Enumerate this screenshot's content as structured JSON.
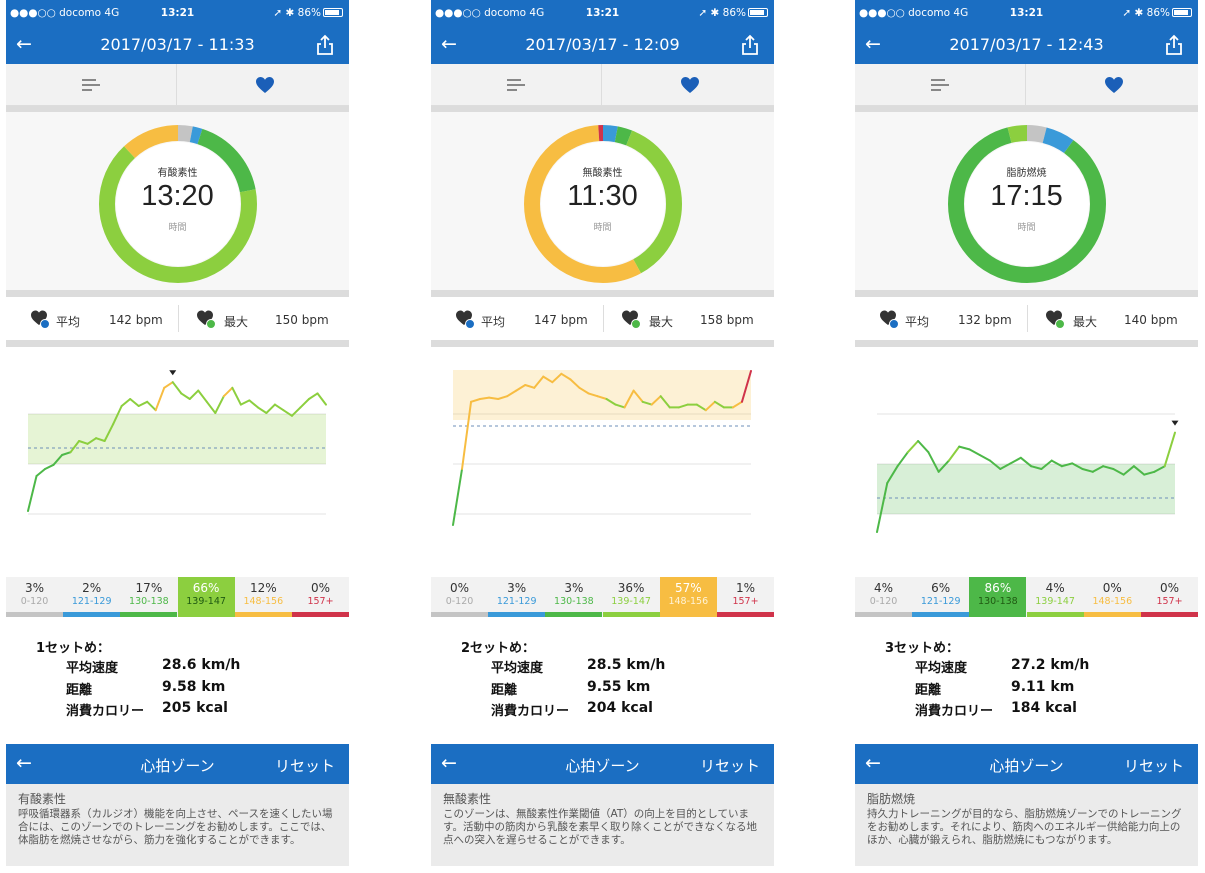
{
  "colors": {
    "brand_blue": "#1b6ec2",
    "zone_blue": "#3a9ad9",
    "zone_green": "#4db848",
    "zone_lightgreen": "#8ccf3f",
    "zone_yellow": "#f7bd42",
    "zone_red": "#d0334a",
    "zone_grey": "#c4c4c4"
  },
  "phones": [
    {
      "status": {
        "carrier": "●●●○○ docomo   4G",
        "time": "13:21",
        "battery": "86%"
      },
      "nav_title": "2017/03/17 - 11:33",
      "ring": {
        "label": "有酸素性",
        "time": "13:20",
        "sub": "時間"
      },
      "ring_segments": [
        {
          "zone": "grey",
          "percent": 3
        },
        {
          "zone": "blue",
          "percent": 2
        },
        {
          "zone": "green",
          "percent": 17
        },
        {
          "zone": "lightgreen",
          "percent": 66
        },
        {
          "zone": "yellow",
          "percent": 12
        },
        {
          "zone": "red",
          "percent": 0
        }
      ],
      "avg_label": "平均",
      "avg_value": "142 bpm",
      "max_label": "最大",
      "max_value": "150 bpm",
      "graph": {
        "band_zone": "lightgreen",
        "peak_marker_index": 17,
        "series": [
          30,
          55,
          60,
          63,
          70,
          72,
          80,
          78,
          82,
          80,
          92,
          105,
          110,
          105,
          108,
          102,
          118,
          122,
          114,
          110,
          116,
          108,
          100,
          112,
          118,
          106,
          109,
          104,
          100,
          106,
          102,
          98,
          104,
          110,
          114,
          106
        ]
      },
      "zones": [
        {
          "pct": "3%",
          "range": "0-120",
          "zone": "grey",
          "active": false
        },
        {
          "pct": "2%",
          "range": "121-129",
          "zone": "blue",
          "active": false
        },
        {
          "pct": "17%",
          "range": "130-138",
          "zone": "green",
          "active": false
        },
        {
          "pct": "66%",
          "range": "139-147",
          "zone": "lightgreen",
          "active": true
        },
        {
          "pct": "12%",
          "range": "148-156",
          "zone": "yellow",
          "active": false
        },
        {
          "pct": "0%",
          "range": "157+",
          "zone": "red",
          "active": false
        }
      ],
      "summary": {
        "set_title": "1セットめ：",
        "rows": [
          {
            "k": "平均速度",
            "v": "28.6 km/h"
          },
          {
            "k": "距離",
            "v": "9.58 km"
          },
          {
            "k": "消費カロリー",
            "v": "205 kcal"
          }
        ]
      },
      "zone_nav": {
        "title": "心拍ゾーン",
        "reset": "リセット"
      },
      "zone_desc": {
        "title": "有酸素性",
        "text": "呼吸循環器系（カルジオ）機能を向上させ、ペースを速くしたい場合には、このゾーンでのトレーニングをお勧めします。ここでは、体脂肪を燃焼させながら、筋力を強化することができます。"
      }
    },
    {
      "status": {
        "carrier": "●●●○○ docomo   4G",
        "time": "13:21",
        "battery": "86%"
      },
      "nav_title": "2017/03/17 - 12:09",
      "ring": {
        "label": "無酸素性",
        "time": "11:30",
        "sub": "時間"
      },
      "ring_segments": [
        {
          "zone": "grey",
          "percent": 0
        },
        {
          "zone": "blue",
          "percent": 3
        },
        {
          "zone": "green",
          "percent": 3
        },
        {
          "zone": "lightgreen",
          "percent": 36
        },
        {
          "zone": "yellow",
          "percent": 57
        },
        {
          "zone": "red",
          "percent": 1
        }
      ],
      "avg_label": "平均",
      "avg_value": "147 bpm",
      "max_label": "最大",
      "max_value": "158 bpm",
      "graph": {
        "band_zone": "yellow",
        "peak_marker_index": -1,
        "series": [
          20,
          60,
          108,
          110,
          111,
          110,
          112,
          116,
          120,
          118,
          126,
          122,
          128,
          124,
          118,
          114,
          112,
          110,
          106,
          104,
          116,
          108,
          106,
          112,
          104,
          104,
          106,
          106,
          102,
          108,
          104,
          104,
          108,
          130
        ]
      },
      "zones": [
        {
          "pct": "0%",
          "range": "0-120",
          "zone": "grey",
          "active": false
        },
        {
          "pct": "3%",
          "range": "121-129",
          "zone": "blue",
          "active": false
        },
        {
          "pct": "3%",
          "range": "130-138",
          "zone": "green",
          "active": false
        },
        {
          "pct": "36%",
          "range": "139-147",
          "zone": "lightgreen",
          "active": false
        },
        {
          "pct": "57%",
          "range": "148-156",
          "zone": "yellow",
          "active": true
        },
        {
          "pct": "1%",
          "range": "157+",
          "zone": "red",
          "active": false
        }
      ],
      "summary": {
        "set_title": "2セットめ：",
        "rows": [
          {
            "k": "平均速度",
            "v": "28.5 km/h"
          },
          {
            "k": "距離",
            "v": "9.55 km"
          },
          {
            "k": "消費カロリー",
            "v": "204 kcal"
          }
        ]
      },
      "zone_nav": {
        "title": "心拍ゾーン",
        "reset": "リセット"
      },
      "zone_desc": {
        "title": "無酸素性",
        "text": "このゾーンは、無酸素性作業閾値（AT）の向上を目的としています。活動中の筋肉から乳酸を素早く取り除くことができなくなる地点への突入を遅らせることができます。"
      }
    },
    {
      "status": {
        "carrier": "●●●○○ docomo   4G",
        "time": "13:21",
        "battery": "86%"
      },
      "nav_title": "2017/03/17 - 12:43",
      "ring": {
        "label": "脂肪燃焼",
        "time": "17:15",
        "sub": "時間"
      },
      "ring_segments": [
        {
          "zone": "grey",
          "percent": 4
        },
        {
          "zone": "blue",
          "percent": 6
        },
        {
          "zone": "green",
          "percent": 86
        },
        {
          "zone": "lightgreen",
          "percent": 4
        },
        {
          "zone": "yellow",
          "percent": 0
        },
        {
          "zone": "red",
          "percent": 0
        }
      ],
      "avg_label": "平均",
      "avg_value": "132 bpm",
      "max_label": "最大",
      "max_value": "140 bpm",
      "graph": {
        "band_zone": "green",
        "peak_marker_index": 29,
        "series": [
          15,
          50,
          62,
          72,
          80,
          72,
          58,
          66,
          76,
          74,
          70,
          66,
          60,
          64,
          68,
          62,
          60,
          66,
          62,
          64,
          60,
          58,
          62,
          60,
          56,
          62,
          56,
          58,
          62,
          86
        ]
      },
      "zones": [
        {
          "pct": "4%",
          "range": "0-120",
          "zone": "grey",
          "active": false
        },
        {
          "pct": "6%",
          "range": "121-129",
          "zone": "blue",
          "active": false
        },
        {
          "pct": "86%",
          "range": "130-138",
          "zone": "green",
          "active": true
        },
        {
          "pct": "4%",
          "range": "139-147",
          "zone": "lightgreen",
          "active": false
        },
        {
          "pct": "0%",
          "range": "148-156",
          "zone": "yellow",
          "active": false
        },
        {
          "pct": "0%",
          "range": "157+",
          "zone": "red",
          "active": false
        }
      ],
      "summary": {
        "set_title": "3セットめ：",
        "rows": [
          {
            "k": "平均速度",
            "v": "27.2 km/h"
          },
          {
            "k": "距離",
            "v": "9.11 km"
          },
          {
            "k": "消費カロリー",
            "v": "184 kcal"
          }
        ]
      },
      "zone_nav": {
        "title": "心拍ゾーン",
        "reset": "リセット"
      },
      "zone_desc": {
        "title": "脂肪燃焼",
        "text": "持久力トレーニングが目的なら、脂肪燃焼ゾーンでのトレーニングをお勧めします。それにより、筋肉へのエネルギー供給能力向上のほか、心臓が鍛えられ、脂肪燃焼にもつながります。"
      }
    }
  ]
}
